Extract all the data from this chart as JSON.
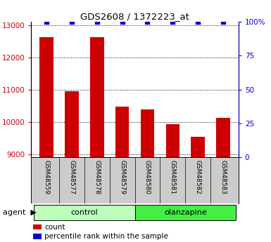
{
  "title": "GDS2608 / 1372223_at",
  "samples": [
    "GSM48559",
    "GSM48577",
    "GSM48578",
    "GSM48579",
    "GSM48580",
    "GSM48581",
    "GSM48582",
    "GSM48583"
  ],
  "counts": [
    12630,
    10950,
    12620,
    10480,
    10390,
    9930,
    9530,
    10120
  ],
  "percentile_ranks": [
    100,
    100,
    100,
    100,
    100,
    100,
    100,
    100
  ],
  "groups": [
    "control",
    "control",
    "control",
    "control",
    "olanzapine",
    "olanzapine",
    "olanzapine",
    "olanzapine"
  ],
  "group_colors": {
    "control": "#bbffbb",
    "olanzapine": "#44ee44"
  },
  "bar_color": "#cc0000",
  "dot_color": "#0000cc",
  "ylim_left": [
    8900,
    13100
  ],
  "ylim_right": [
    0,
    100
  ],
  "yticks_left": [
    9000,
    10000,
    11000,
    12000,
    13000
  ],
  "yticks_right": [
    0,
    25,
    50,
    75,
    100
  ],
  "yticklabels_right": [
    "0",
    "25",
    "50",
    "75",
    "100%"
  ],
  "left_tick_color": "#cc0000",
  "right_tick_color": "#0000cc",
  "bg_plot": "#ffffff",
  "bg_sample_row": "#cccccc",
  "legend_count_label": "count",
  "legend_percentile_label": "percentile rank within the sample"
}
